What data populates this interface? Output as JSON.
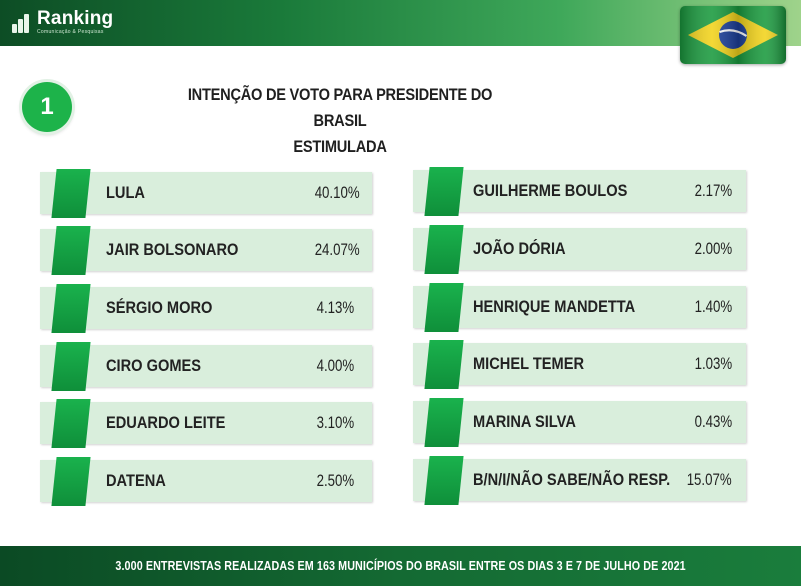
{
  "header": {
    "brand": "Ranking",
    "brand_tagline": "Comunicação & Pesquisas"
  },
  "badge": {
    "number": "1"
  },
  "title": {
    "line1": "INTENÇÃO DE VOTO PARA PRESIDENTE DO BRASIL",
    "line2": "ESTIMULADA"
  },
  "left_column": [
    {
      "name": "LULA",
      "percent": "40.10%"
    },
    {
      "name": "JAIR BOLSONARO",
      "percent": "24.07%"
    },
    {
      "name": "SÉRGIO MORO",
      "percent": "4.13%"
    },
    {
      "name": "CIRO GOMES",
      "percent": "4.00%"
    },
    {
      "name": "EDUARDO LEITE",
      "percent": "3.10%"
    },
    {
      "name": "DATENA",
      "percent": "2.50%"
    }
  ],
  "right_column": [
    {
      "name": "GUILHERME BOULOS",
      "percent": "2.17%"
    },
    {
      "name": "JOÃO DÓRIA",
      "percent": "2.00%"
    },
    {
      "name": "HENRIQUE MANDETTA",
      "percent": "1.40%"
    },
    {
      "name": "MICHEL TEMER",
      "percent": "1.03%"
    },
    {
      "name": "MARINA SILVA",
      "percent": "0.43%"
    },
    {
      "name": "B/N/I/NÃO SABE/NÃO RESP.",
      "percent": "15.07%"
    }
  ],
  "footer": {
    "text": "3.000 ENTREVISTAS REALIZADAS EM 163 MUNICÍPIOS DO BRASIL ENTRE OS DIAS 3 E 7 DE JULHO DE 2021"
  },
  "colors": {
    "accent_green": "#1db34a",
    "card_bg": "#d9eedc",
    "header_dark": "#0d4d25"
  },
  "icons": {
    "logo": "ranking-bars-logo-icon",
    "flag": "brazil-flag-icon"
  }
}
